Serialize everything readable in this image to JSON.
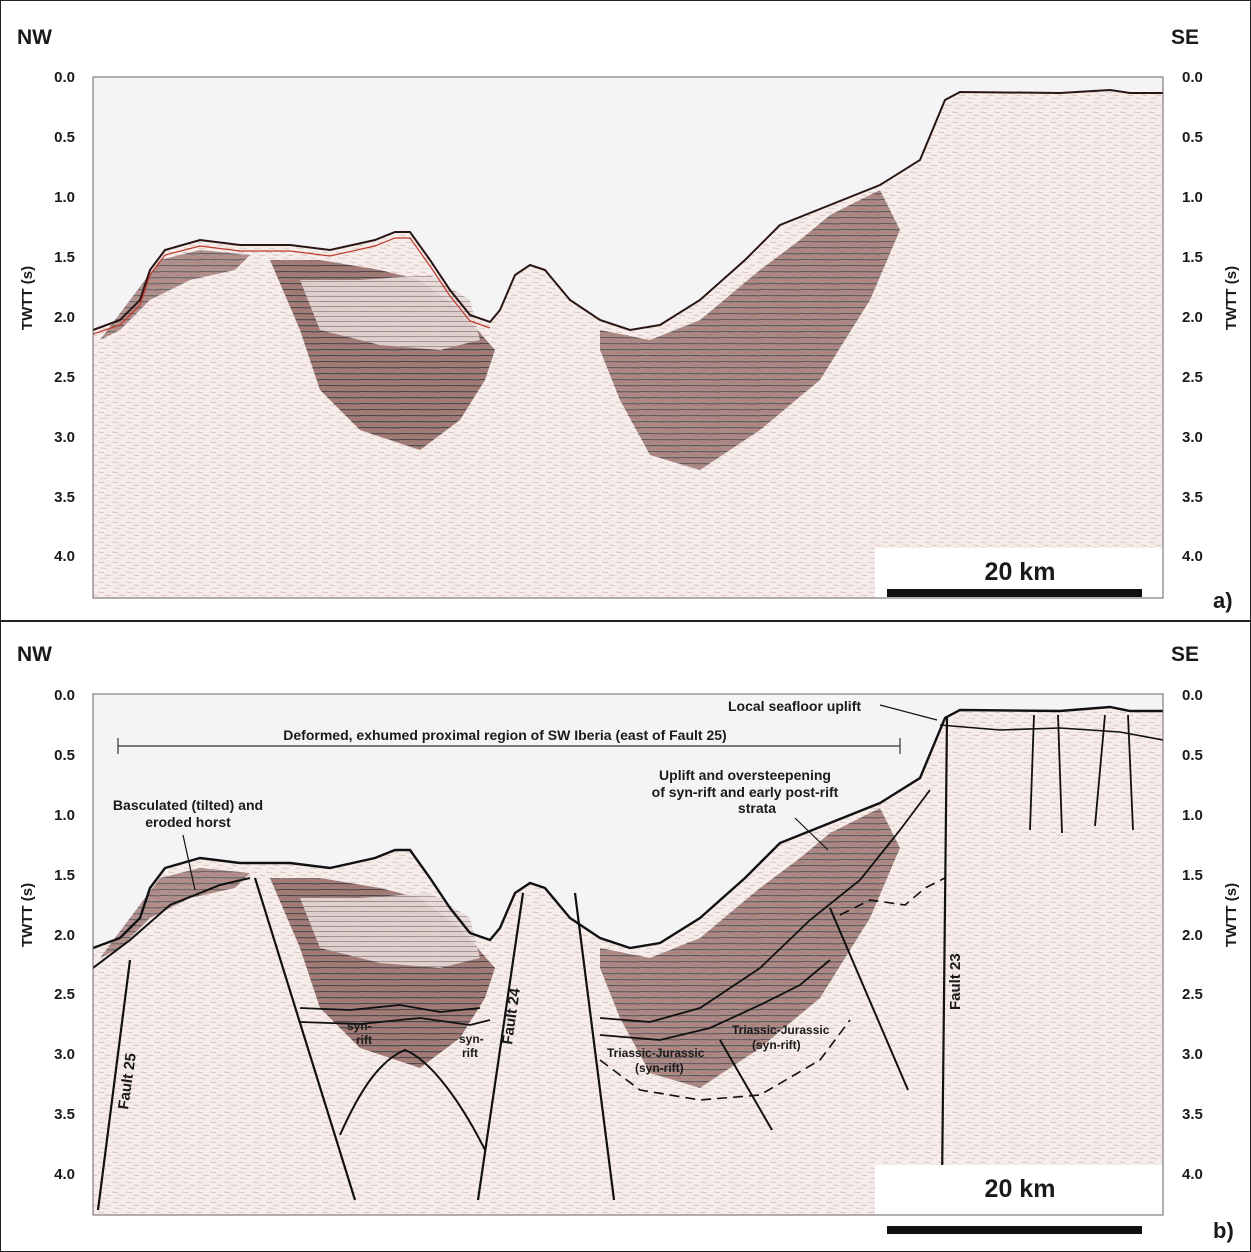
{
  "panel_a": {
    "left_label": "NW",
    "right_label": "SE",
    "axis_title": "TWTT (s)",
    "ticks": [
      "0.0",
      "0.5",
      "1.0",
      "1.5",
      "2.0",
      "2.5",
      "3.0",
      "3.5",
      "4.0"
    ],
    "scale_bar": "20   km",
    "panel_tag": "a)"
  },
  "panel_b": {
    "left_label": "NW",
    "right_label": "SE",
    "axis_title": "TWTT (s)",
    "ticks": [
      "0.0",
      "0.5",
      "1.0",
      "1.5",
      "2.0",
      "2.5",
      "3.0",
      "3.5",
      "4.0"
    ],
    "scale_bar": "20   km",
    "panel_tag": "b)",
    "annotations": {
      "seafloor_uplift": "Local seafloor uplift",
      "deformed_region": "Deformed, exhumed proximal region of SW Iberia (east of Fault 25)",
      "uplift_line1": "Uplift and oversteepening",
      "uplift_line2": "of syn-rift and early post-rift",
      "uplift_line3": "strata",
      "horst_line1": "Basculated (tilted) and",
      "horst_line2": "eroded horst",
      "synrift1_a": "syn-",
      "synrift1_b": "rift",
      "synrift2_a": "syn-",
      "synrift2_b": "rift",
      "tj1_a": "Triassic-Jurassic",
      "tj1_b": "(syn-rift)",
      "tj2_a": "Triassic-Jurassic",
      "tj2_b": "(syn-rift)"
    },
    "faults": {
      "fault25": "Fault 25",
      "fault24": "Fault 24",
      "fault23": "Fault 23"
    }
  },
  "colors": {
    "water": "#f4f3f5",
    "sediment_dark": "#4a3030",
    "reflector_red": "#c0392b",
    "background_noise": "#f3e7e5",
    "line": "#111111"
  }
}
